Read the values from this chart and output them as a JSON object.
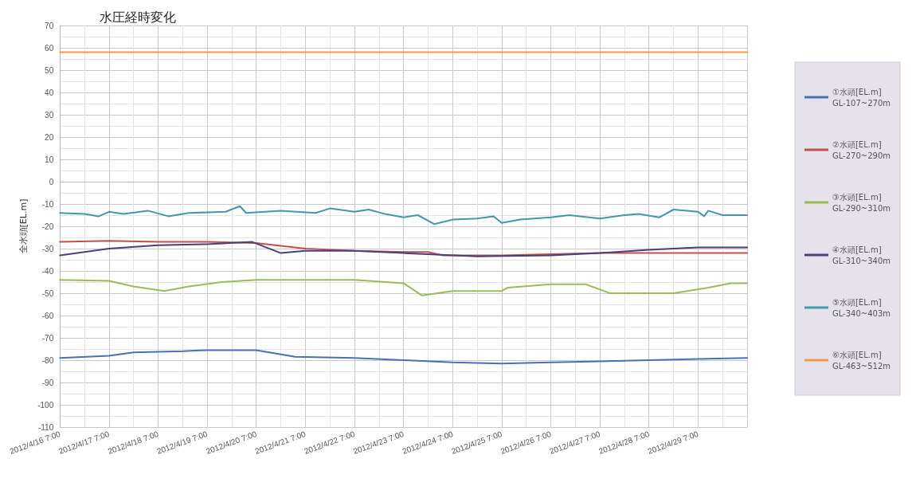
{
  "chart_data": {
    "type": "line",
    "title": "水圧経時変化",
    "ylabel": "全水頭[EL.m]",
    "xlim": [
      "2012-04-16T07:00",
      "2012-04-30T07:00"
    ],
    "xticks": [
      {
        "value": "2012-04-16T07:00",
        "label": "2012/4/16 7:00"
      },
      {
        "value": "2012-04-17T07:00",
        "label": "2012/4/17 7:00"
      },
      {
        "value": "2012-04-18T07:00",
        "label": "2012/4/18 7:00"
      },
      {
        "value": "2012-04-19T07:00",
        "label": "2012/4/19 7:00"
      },
      {
        "value": "2012-04-20T07:00",
        "label": "2012/4/20 7:00"
      },
      {
        "value": "2012-04-21T07:00",
        "label": "2012/4/21 7:00"
      },
      {
        "value": "2012-04-22T07:00",
        "label": "2012/4/22 7:00"
      },
      {
        "value": "2012-04-23T07:00",
        "label": "2012/4/23 7:00"
      },
      {
        "value": "2012-04-24T07:00",
        "label": "2012/4/24 7:00"
      },
      {
        "value": "2012-04-25T07:00",
        "label": "2012/4/25 7:00"
      },
      {
        "value": "2012-04-26T07:00",
        "label": "2012/4/26 7:00"
      },
      {
        "value": "2012-04-27T07:00",
        "label": "2012/4/27 7:00"
      },
      {
        "value": "2012-04-28T07:00",
        "label": "2012/4/28 7:00"
      },
      {
        "value": "2012-04-29T07:00",
        "label": "2012/4/29 7:00"
      },
      {
        "value": "2012-04-30T07:00",
        "label": null
      }
    ],
    "ylim": [
      -110,
      70
    ],
    "yticks": [
      -110,
      -100,
      -90,
      -80,
      -70,
      -60,
      -50,
      -40,
      -30,
      -20,
      -10,
      0,
      10,
      20,
      30,
      40,
      50,
      60,
      70
    ],
    "grid": true,
    "legend": "right",
    "marker": "none",
    "line_style": "solid",
    "series": [
      {
        "name": "①水頭[EL.m]\nGL-107~270m",
        "color": "#4a6fb5",
        "x": [
          "2012-04-16T07:00",
          "2012-04-17T07:00",
          "2012-04-17T19:00",
          "2012-04-18T19:00",
          "2012-04-19T07:00",
          "2012-04-20T07:00",
          "2012-04-21T02:00",
          "2012-04-22T07:00",
          "2012-04-23T07:00",
          "2012-04-24T07:00",
          "2012-04-25T07:00",
          "2012-04-26T07:00",
          "2012-04-27T07:00",
          "2012-04-28T07:00",
          "2012-04-29T07:00",
          "2012-04-30T07:00"
        ],
        "values": [
          -79,
          -78,
          -76.5,
          -76,
          -75.5,
          -75.5,
          -78.5,
          -79,
          -80,
          -81,
          -81.5,
          -81,
          -80.5,
          -80,
          -79.5,
          -79
        ]
      },
      {
        "name": "②水頭[EL.m]\nGL-270~290m",
        "color": "#c0504d",
        "x": [
          "2012-04-16T07:00",
          "2012-04-17T07:00",
          "2012-04-18T07:00",
          "2012-04-19T07:00",
          "2012-04-20T07:00",
          "2012-04-21T07:00",
          "2012-04-22T07:00",
          "2012-04-23T07:00",
          "2012-04-23T19:00",
          "2012-04-24T02:00",
          "2012-04-25T07:00",
          "2012-04-26T07:00",
          "2012-04-27T07:00",
          "2012-04-28T07:00",
          "2012-04-30T07:00"
        ],
        "values": [
          -27,
          -26.5,
          -27,
          -27,
          -27.5,
          -30,
          -31,
          -31.5,
          -31.5,
          -33,
          -33,
          -32.5,
          -32,
          -32,
          -32
        ]
      },
      {
        "name": "③水頭[EL.m]\nGL-290~310m",
        "color": "#9bbb59",
        "x": [
          "2012-04-16T07:00",
          "2012-04-17T07:00",
          "2012-04-17T19:00",
          "2012-04-18T10:00",
          "2012-04-18T22:00",
          "2012-04-19T14:00",
          "2012-04-20T07:00",
          "2012-04-22T07:00",
          "2012-04-23T07:00",
          "2012-04-23T16:00",
          "2012-04-24T07:00",
          "2012-04-25T07:00",
          "2012-04-25T10:00",
          "2012-04-26T07:00",
          "2012-04-27T00:00",
          "2012-04-27T12:00",
          "2012-04-28T19:00",
          "2012-04-29T12:00",
          "2012-04-29T23:00",
          "2012-04-30T07:00"
        ],
        "values": [
          -44,
          -44.5,
          -47,
          -49,
          -47,
          -45,
          -44,
          -44,
          -45.5,
          -51,
          -49,
          -49,
          -47.5,
          -46,
          -46,
          -50,
          -50,
          -47.5,
          -45.5,
          -45.5
        ]
      },
      {
        "name": "④水頭[EL.m]\nGL-310~340m",
        "color": "#4b3f7a",
        "x": [
          "2012-04-16T07:00",
          "2012-04-17T07:00",
          "2012-04-18T07:00",
          "2012-04-19T07:00",
          "2012-04-20T05:00",
          "2012-04-20T19:00",
          "2012-04-21T07:00",
          "2012-04-22T07:00",
          "2012-04-23T07:00",
          "2012-04-24T19:00",
          "2012-04-26T07:00",
          "2012-04-27T07:00",
          "2012-04-28T07:00",
          "2012-04-29T07:00",
          "2012-04-30T07:00"
        ],
        "values": [
          -33,
          -30,
          -28.5,
          -28,
          -27,
          -32,
          -31,
          -31,
          -32,
          -33.5,
          -33,
          -32,
          -30.5,
          -29.5,
          -29.5
        ]
      },
      {
        "name": "⑤水頭[EL.m]\nGL-340~403m",
        "color": "#3f9aa8",
        "x": [
          "2012-04-16T07:00",
          "2012-04-16T19:00",
          "2012-04-17T02:00",
          "2012-04-17T07:00",
          "2012-04-17T14:00",
          "2012-04-18T02:00",
          "2012-04-18T12:00",
          "2012-04-18T22:00",
          "2012-04-19T16:00",
          "2012-04-19T23:00",
          "2012-04-20T02:00",
          "2012-04-20T19:00",
          "2012-04-21T12:00",
          "2012-04-21T19:00",
          "2012-04-22T07:00",
          "2012-04-22T14:00",
          "2012-04-22T22:00",
          "2012-04-23T07:00",
          "2012-04-23T14:00",
          "2012-04-23T22:00",
          "2012-04-24T07:00",
          "2012-04-24T19:00",
          "2012-04-25T03:00",
          "2012-04-25T07:00",
          "2012-04-25T16:00",
          "2012-04-26T07:00",
          "2012-04-26T16:00",
          "2012-04-27T07:00",
          "2012-04-27T19:00",
          "2012-04-28T02:00",
          "2012-04-28T12:00",
          "2012-04-28T19:00",
          "2012-04-29T07:00",
          "2012-04-29T10:00",
          "2012-04-29T12:00",
          "2012-04-29T19:00",
          "2012-04-30T07:00"
        ],
        "values": [
          -14,
          -14.5,
          -15.5,
          -13.5,
          -14.5,
          -13,
          -15.5,
          -14,
          -13.5,
          -11,
          -14,
          -13,
          -14,
          -12,
          -13.5,
          -12.5,
          -14.5,
          -16,
          -15,
          -19,
          -17,
          -16.5,
          -15.5,
          -18.5,
          -17,
          -16,
          -15,
          -16.5,
          -15,
          -14.5,
          -16,
          -12.5,
          -13.5,
          -15.5,
          -13,
          -15,
          -15
        ]
      },
      {
        "name": "⑥水頭[EL.m]\nGL-463~512m",
        "color": "#f79646",
        "x": [
          "2012-04-16T07:00",
          "2012-04-30T07:00"
        ],
        "values": [
          58,
          58
        ]
      }
    ]
  }
}
